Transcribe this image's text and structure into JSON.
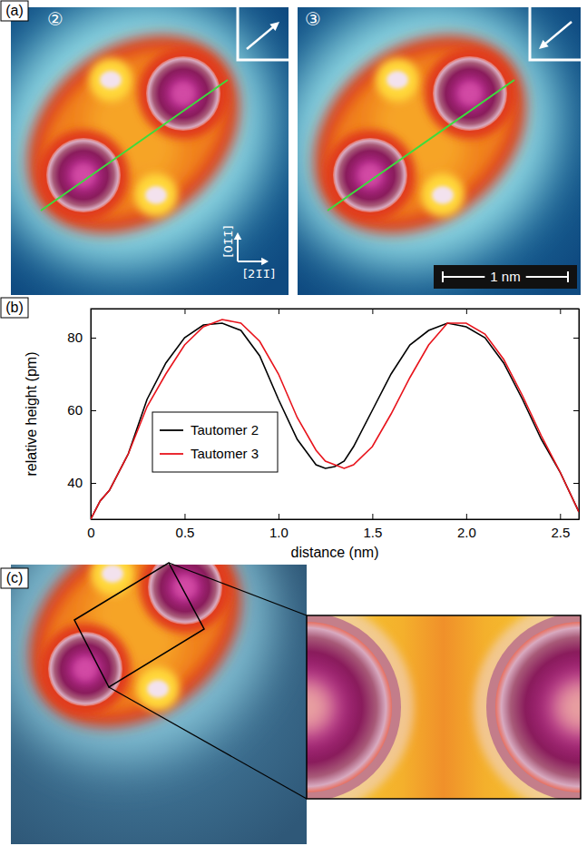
{
  "chart_data": [
    {
      "type": "image",
      "title": "(a)",
      "annotations": [
        "②",
        "③",
        "[01̄1̄]",
        "[21̄1̄]",
        "1 nm"
      ]
    },
    {
      "type": "line",
      "title": "(b)",
      "x_label": "distance (nm)",
      "y_label": "relative height (pm)",
      "x": [
        0,
        0.05,
        0.1,
        0.2,
        0.3,
        0.4,
        0.5,
        0.6,
        0.7,
        0.8,
        0.9,
        1.0,
        1.1,
        1.2,
        1.25,
        1.3,
        1.35,
        1.4,
        1.5,
        1.6,
        1.7,
        1.8,
        1.9,
        2.0,
        2.1,
        2.2,
        2.3,
        2.4,
        2.5,
        2.6
      ],
      "series": [
        {
          "name": "Tautomer 2",
          "color": "#000000",
          "values": [
            30,
            35,
            38,
            48,
            63,
            73,
            80,
            83.5,
            84,
            82,
            75,
            63,
            52,
            45,
            44,
            44.5,
            46,
            50,
            60,
            70,
            78,
            82,
            84,
            83,
            80,
            73,
            63,
            52,
            43,
            32
          ]
        },
        {
          "name": "Tautomer 3",
          "color": "#e8141c",
          "values": [
            30,
            35,
            38,
            48,
            61,
            70,
            78,
            83,
            85,
            84,
            79,
            70,
            58,
            49,
            46,
            45,
            44,
            45,
            50,
            59,
            69,
            78,
            84,
            84,
            81,
            74,
            64,
            53,
            43,
            32
          ]
        }
      ],
      "xlim": [
        0,
        2.6
      ],
      "ylim": [
        30,
        88
      ],
      "xticks": [
        0,
        0.5,
        {
          "value": 1,
          "label": "1.0"
        },
        1.5,
        {
          "value": 2,
          "label": "2.0"
        },
        2.5
      ],
      "yticks": [
        40,
        60,
        80
      ],
      "legend": "lower left",
      "grid": false
    },
    {
      "type": "image",
      "title": "(c)"
    }
  ]
}
